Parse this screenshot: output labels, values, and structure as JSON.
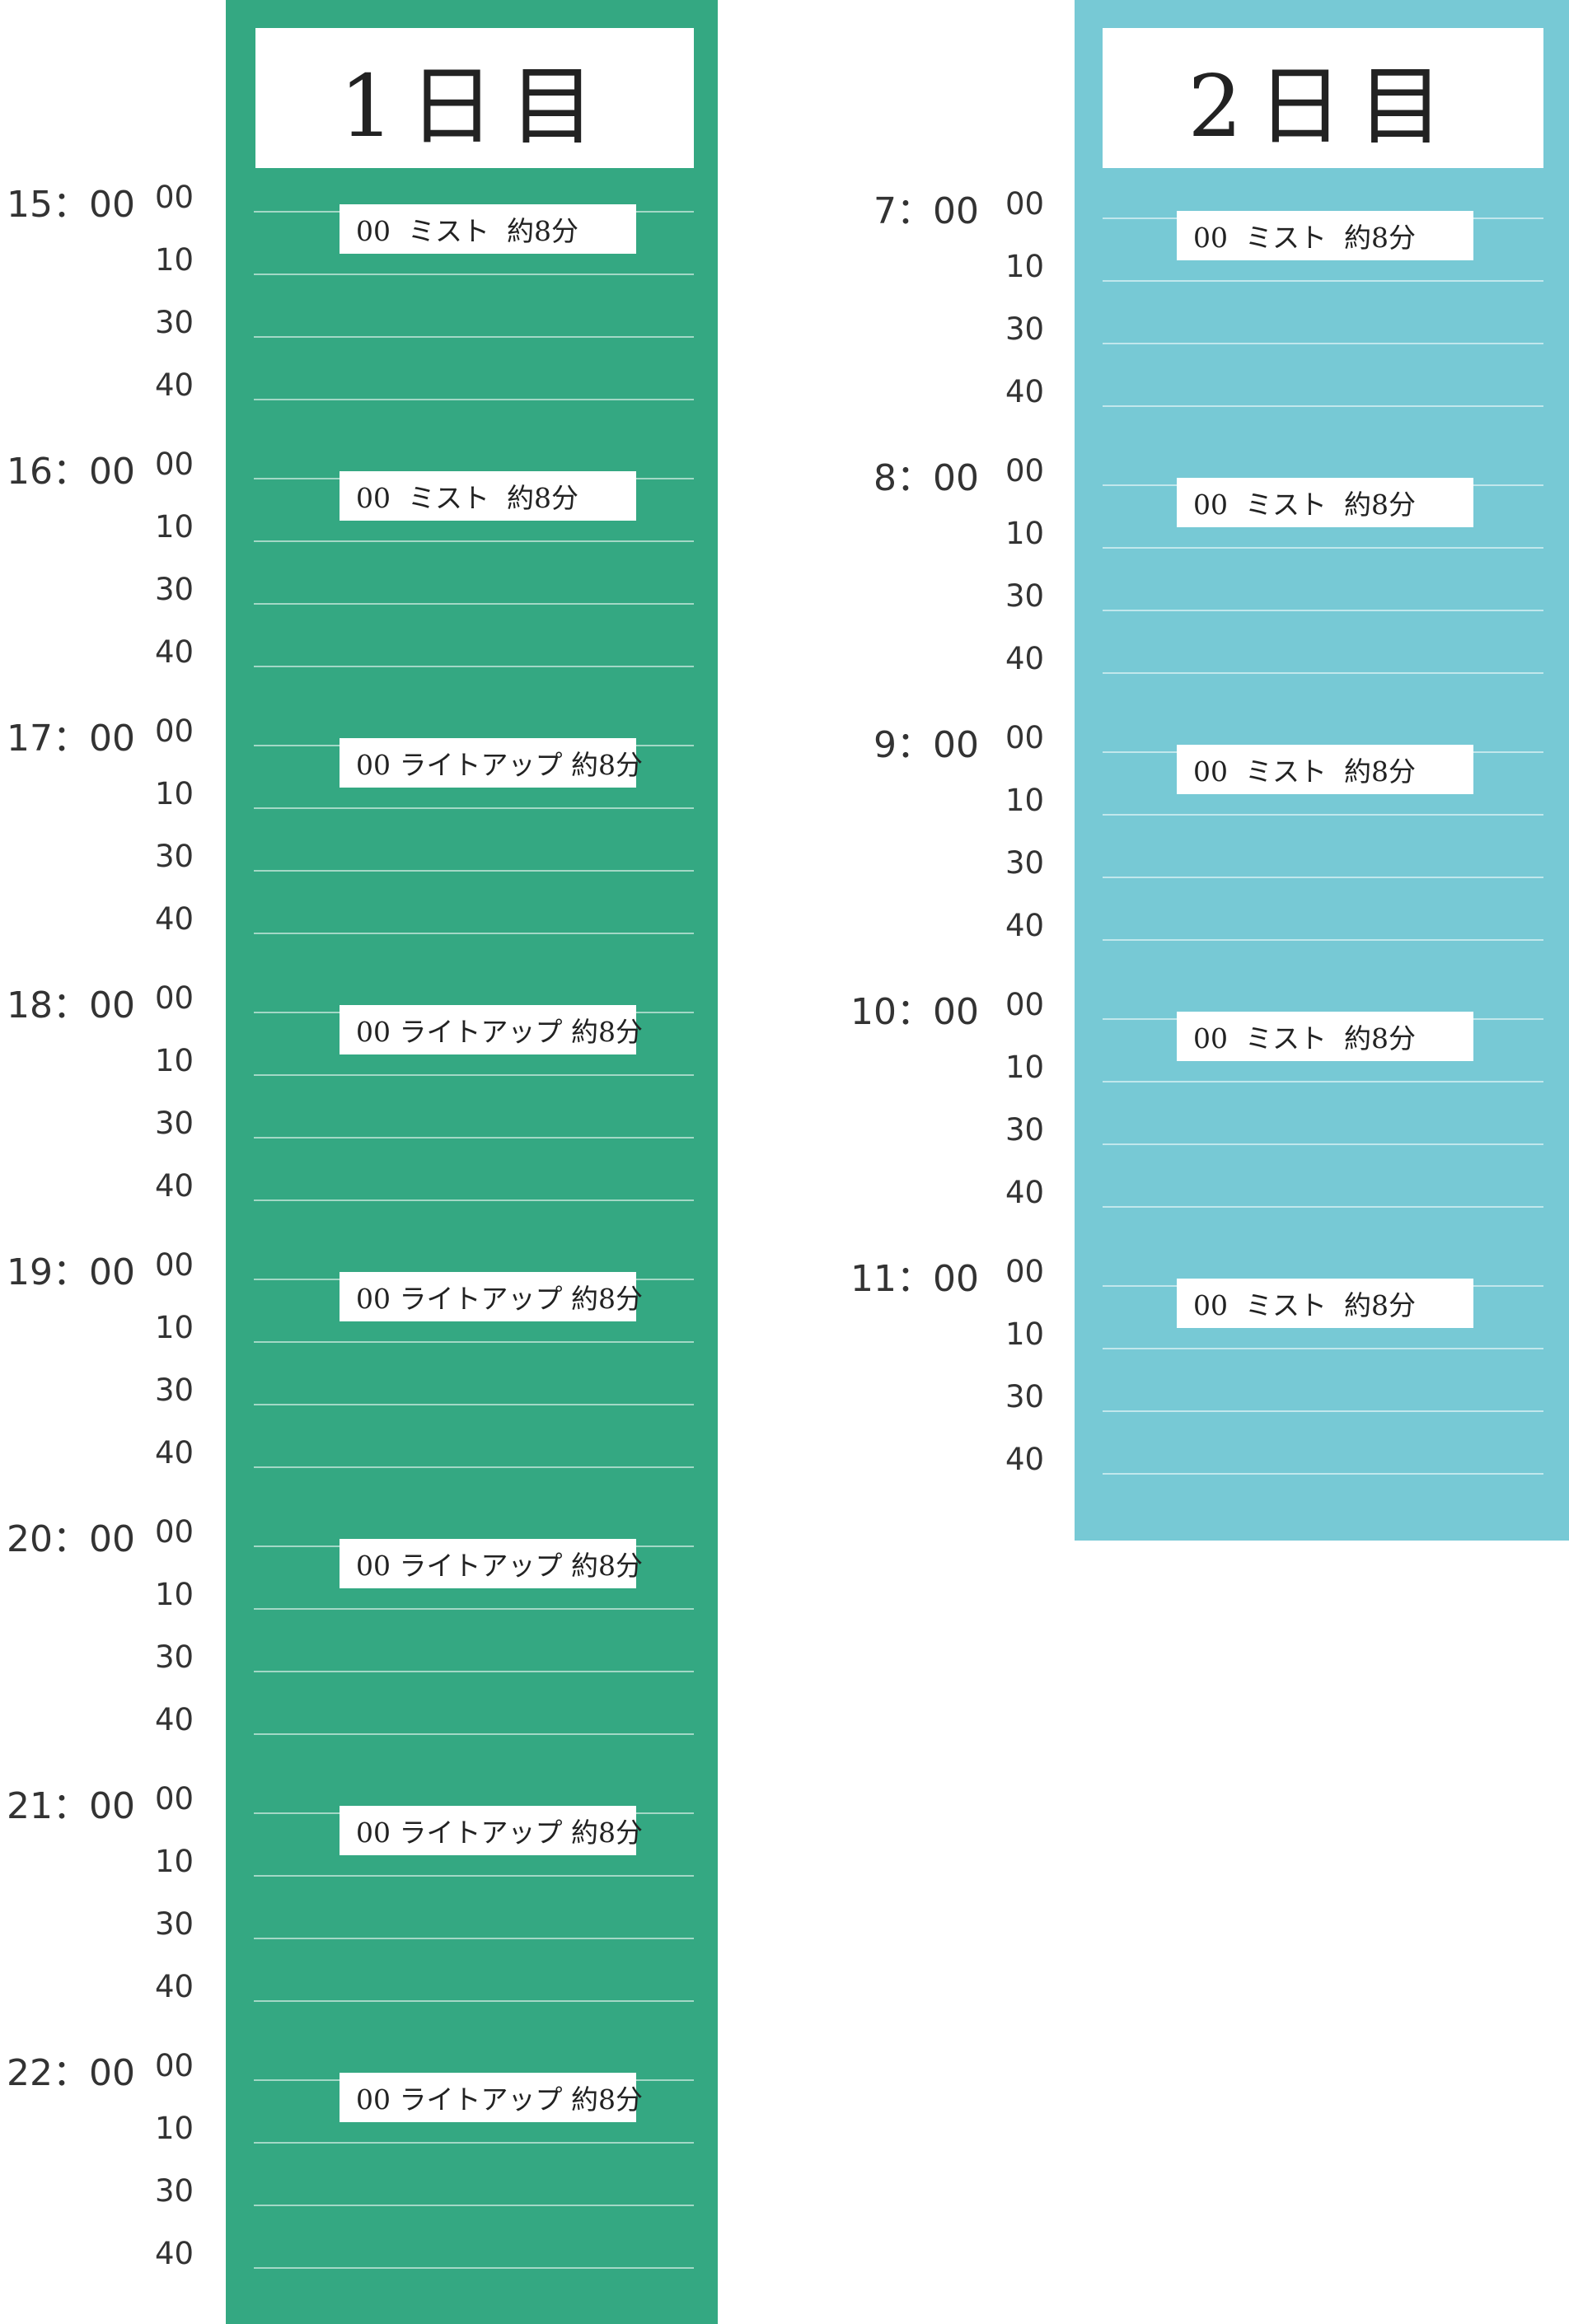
{
  "colors": {
    "day1_bg": "#34a882",
    "day2_bg": "#77c9d5"
  },
  "days": [
    {
      "title": "1日目",
      "hours": [
        {
          "hour": "15：00",
          "minutes": [
            "00",
            "10",
            "30",
            "40"
          ],
          "event": "00  ミスト  約8分"
        },
        {
          "hour": "16：00",
          "minutes": [
            "00",
            "10",
            "30",
            "40"
          ],
          "event": "00  ミスト  約8分"
        },
        {
          "hour": "17：00",
          "minutes": [
            "00",
            "10",
            "30",
            "40"
          ],
          "event": "00 ライトアップ 約8分"
        },
        {
          "hour": "18：00",
          "minutes": [
            "00",
            "10",
            "30",
            "40"
          ],
          "event": "00 ライトアップ 約8分"
        },
        {
          "hour": "19：00",
          "minutes": [
            "00",
            "10",
            "30",
            "40"
          ],
          "event": "00 ライトアップ 約8分"
        },
        {
          "hour": "20：00",
          "minutes": [
            "00",
            "10",
            "30",
            "40"
          ],
          "event": "00 ライトアップ 約8分"
        },
        {
          "hour": "21：00",
          "minutes": [
            "00",
            "10",
            "30",
            "40"
          ],
          "event": "00 ライトアップ 約8分"
        },
        {
          "hour": "22：00",
          "minutes": [
            "00",
            "10",
            "30",
            "40"
          ],
          "event": "00 ライトアップ 約8分"
        }
      ]
    },
    {
      "title": "2日目",
      "hours": [
        {
          "hour": "7：00",
          "minutes": [
            "00",
            "10",
            "30",
            "40"
          ],
          "event": "00  ミスト  約8分"
        },
        {
          "hour": "8：00",
          "minutes": [
            "00",
            "10",
            "30",
            "40"
          ],
          "event": "00  ミスト  約8分"
        },
        {
          "hour": "9：00",
          "minutes": [
            "00",
            "10",
            "30",
            "40"
          ],
          "event": "00  ミスト  約8分"
        },
        {
          "hour": "10：00",
          "minutes": [
            "00",
            "10",
            "30",
            "40"
          ],
          "event": "00  ミスト  約8分"
        },
        {
          "hour": "11：00",
          "minutes": [
            "00",
            "10",
            "30",
            "40"
          ],
          "event": "00  ミスト  約8分"
        }
      ]
    }
  ]
}
